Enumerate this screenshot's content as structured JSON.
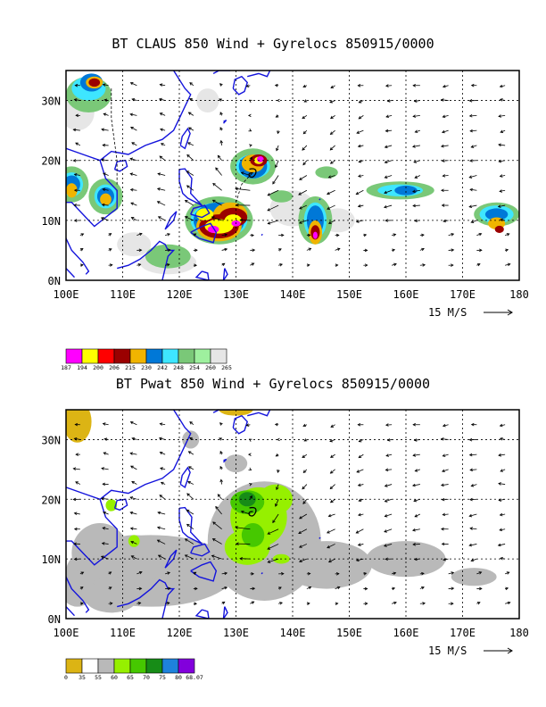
{
  "panels": [
    {
      "title": "BT CLAUS 850 Wind + Gyrelocs 850915/0000",
      "y_ticks": [
        "30N",
        "20N",
        "10N",
        "0N"
      ],
      "x_ticks": [
        "100E",
        "110E",
        "120E",
        "130E",
        "140E",
        "150E",
        "160E",
        "170E",
        "180"
      ],
      "vector_label": "15 M/S",
      "legend_values": [
        "187",
        "194",
        "200",
        "206",
        "215",
        "230",
        "242",
        "248",
        "254",
        "260",
        "265"
      ],
      "legend_colors": [
        "#ff00ff",
        "#ffff00",
        "#ff0000",
        "#9b0000",
        "#f0b400",
        "#0078d7",
        "#3ee6ff",
        "#7ac878",
        "#9ef09e",
        "#e6e6e6"
      ]
    },
    {
      "title": "BT Pwat 850 Wind + Gyrelocs 850915/0000",
      "y_ticks": [
        "30N",
        "20N",
        "10N",
        "0N"
      ],
      "x_ticks": [
        "100E",
        "110E",
        "120E",
        "130E",
        "140E",
        "150E",
        "160E",
        "170E",
        "180"
      ],
      "vector_label": "15 M/S",
      "legend_values": [
        "0",
        "35",
        "55",
        "60",
        "65",
        "70",
        "75",
        "80",
        "68.07"
      ],
      "legend_colors": [
        "#dcb414",
        "#ffffff",
        "#b9b9b9",
        "#96f000",
        "#46c800",
        "#178c17",
        "#1e82dc",
        "#8200dc"
      ]
    }
  ]
}
